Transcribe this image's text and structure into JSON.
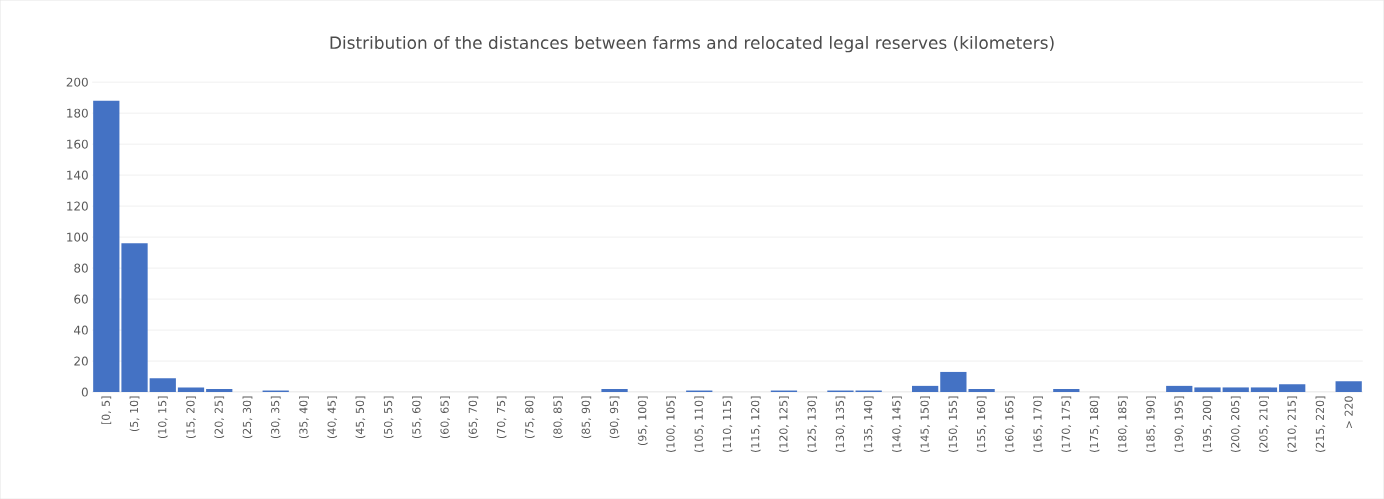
{
  "chart_data": {
    "type": "bar",
    "title": "Distribution of the distances between farms and relocated legal reserves (kilometers)",
    "categories": [
      "[0, 5]",
      "(5, 10]",
      "(10, 15]",
      "(15, 20]",
      "(20, 25]",
      "(25, 30]",
      "(30, 35]",
      "(35, 40]",
      "(40, 45]",
      "(45, 50]",
      "(50, 55]",
      "(55, 60]",
      "(60, 65]",
      "(65, 70]",
      "(70, 75]",
      "(75, 80]",
      "(80, 85]",
      "(85, 90]",
      "(90, 95]",
      "(95, 100]",
      "(100, 105]",
      "(105, 110]",
      "(110, 115]",
      "(115, 120]",
      "(120, 125]",
      "(125, 130]",
      "(130, 135]",
      "(135, 140]",
      "(140, 145]",
      "(145, 150]",
      "(150, 155]",
      "(155, 160]",
      "(160, 165]",
      "(165, 170]",
      "(170, 175]",
      "(175, 180]",
      "(180, 185]",
      "(185, 190]",
      "(190, 195]",
      "(195, 200]",
      "(200, 205]",
      "(205, 210]",
      "(210, 215]",
      "(215, 220]",
      "> 220"
    ],
    "values": [
      188,
      96,
      9,
      3,
      2,
      0,
      1,
      0,
      0,
      0,
      0,
      0,
      0,
      0,
      0,
      0,
      0,
      0,
      2,
      0,
      0,
      1,
      0,
      0,
      1,
      0,
      1,
      1,
      0,
      4,
      13,
      2,
      0,
      0,
      2,
      0,
      0,
      0,
      4,
      3,
      3,
      3,
      5,
      0,
      7
    ],
    "color": "#4472c4",
    "ylim": [
      0,
      200
    ],
    "yticks": [
      0,
      20,
      40,
      60,
      80,
      100,
      120,
      140,
      160,
      180,
      200
    ],
    "grid": "y"
  }
}
